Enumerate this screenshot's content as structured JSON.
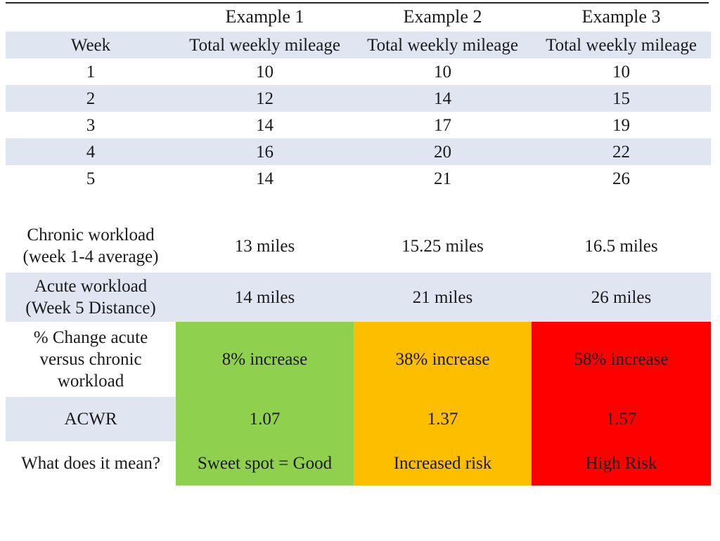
{
  "table": {
    "examples": [
      "Example 1",
      "Example 2",
      "Example 3"
    ],
    "week_header": "Week",
    "col_header": "Total weekly mileage",
    "weeks": [
      [
        "1",
        "10",
        "10",
        "10"
      ],
      [
        "2",
        "12",
        "14",
        "15"
      ],
      [
        "3",
        "14",
        "17",
        "19"
      ],
      [
        "4",
        "16",
        "20",
        "22"
      ],
      [
        "5",
        "14",
        "21",
        "26"
      ]
    ],
    "chronic": {
      "label_line1": "Chronic workload",
      "label_line2": "(week 1-4 average)",
      "values": [
        "13 miles",
        "15.25 miles",
        "16.5 miles"
      ]
    },
    "acute": {
      "label_line1": "Acute workload",
      "label_line2": "(Week 5 Distance)",
      "values": [
        "14 miles",
        "21 miles",
        "26 miles"
      ]
    },
    "change": {
      "label_line1": "% Change acute",
      "label_line2": "versus chronic",
      "label_line3": "workload",
      "values": [
        "8% increase",
        "38% increase",
        "58% increase"
      ]
    },
    "acwr": {
      "label": "ACWR",
      "values": [
        "1.07",
        "1.37",
        "1.57"
      ]
    },
    "meaning": {
      "label": "What does it mean?",
      "values": [
        "Sweet spot = Good",
        "Increased risk",
        "High Risk"
      ]
    },
    "colors": {
      "band": "#dfe5f1",
      "good": "#8fd14e",
      "moderate": "#fdbe00",
      "high": "#fe0000"
    }
  }
}
